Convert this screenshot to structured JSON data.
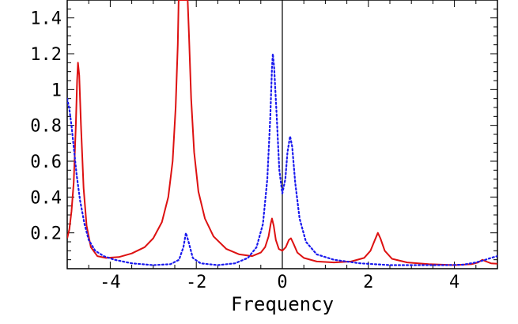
{
  "chart_data": {
    "type": "line",
    "title": "",
    "xlabel": "Frequency",
    "ylabel": "",
    "xlim": [
      -5,
      5
    ],
    "ylim": [
      0,
      1.5
    ],
    "xticks": [
      -4,
      -2,
      0,
      2,
      4
    ],
    "xtick_labels": [
      "-4",
      "-2",
      "0",
      "2",
      "4"
    ],
    "yticks": [
      0.2,
      0.4,
      0.6,
      0.8,
      1.0,
      1.2,
      1.4
    ],
    "ytick_labels": [
      "0.2",
      "0.4",
      "0.6",
      "0.8",
      "1",
      "1.2",
      "1.4"
    ],
    "grid": false,
    "series": [
      {
        "color": "#dd1111",
        "style": "solid",
        "points": [
          [
            -5.0,
            0.17
          ],
          [
            -4.95,
            0.22
          ],
          [
            -4.9,
            0.32
          ],
          [
            -4.85,
            0.48
          ],
          [
            -4.8,
            0.8
          ],
          [
            -4.77,
            1.05
          ],
          [
            -4.75,
            1.15
          ],
          [
            -4.72,
            1.08
          ],
          [
            -4.68,
            0.8
          ],
          [
            -4.62,
            0.45
          ],
          [
            -4.55,
            0.24
          ],
          [
            -4.45,
            0.12
          ],
          [
            -4.3,
            0.07
          ],
          [
            -4.1,
            0.06
          ],
          [
            -3.8,
            0.065
          ],
          [
            -3.5,
            0.085
          ],
          [
            -3.2,
            0.12
          ],
          [
            -3.0,
            0.17
          ],
          [
            -2.8,
            0.26
          ],
          [
            -2.65,
            0.4
          ],
          [
            -2.55,
            0.6
          ],
          [
            -2.48,
            0.9
          ],
          [
            -2.43,
            1.25
          ],
          [
            -2.41,
            1.5
          ],
          [
            -2.2,
            1.5
          ],
          [
            -2.17,
            1.3
          ],
          [
            -2.12,
            0.95
          ],
          [
            -2.05,
            0.65
          ],
          [
            -1.95,
            0.43
          ],
          [
            -1.8,
            0.28
          ],
          [
            -1.6,
            0.18
          ],
          [
            -1.3,
            0.11
          ],
          [
            -1.0,
            0.08
          ],
          [
            -0.7,
            0.07
          ],
          [
            -0.5,
            0.09
          ],
          [
            -0.4,
            0.12
          ],
          [
            -0.32,
            0.18
          ],
          [
            -0.27,
            0.25
          ],
          [
            -0.24,
            0.28
          ],
          [
            -0.2,
            0.24
          ],
          [
            -0.15,
            0.16
          ],
          [
            -0.08,
            0.11
          ],
          [
            0.0,
            0.1
          ],
          [
            0.08,
            0.12
          ],
          [
            0.15,
            0.16
          ],
          [
            0.2,
            0.17
          ],
          [
            0.26,
            0.14
          ],
          [
            0.35,
            0.09
          ],
          [
            0.5,
            0.06
          ],
          [
            0.8,
            0.04
          ],
          [
            1.2,
            0.035
          ],
          [
            1.6,
            0.04
          ],
          [
            1.9,
            0.06
          ],
          [
            2.05,
            0.1
          ],
          [
            2.15,
            0.16
          ],
          [
            2.22,
            0.2
          ],
          [
            2.28,
            0.17
          ],
          [
            2.38,
            0.1
          ],
          [
            2.55,
            0.055
          ],
          [
            2.9,
            0.035
          ],
          [
            3.4,
            0.025
          ],
          [
            4.0,
            0.02
          ],
          [
            4.4,
            0.025
          ],
          [
            4.55,
            0.035
          ],
          [
            4.65,
            0.05
          ],
          [
            4.72,
            0.042
          ],
          [
            4.85,
            0.03
          ],
          [
            5.0,
            0.028
          ]
        ]
      },
      {
        "color": "#1a1aee",
        "style": "dotted",
        "points": [
          [
            -5.0,
            0.95
          ],
          [
            -4.95,
            0.89
          ],
          [
            -4.9,
            0.8
          ],
          [
            -4.85,
            0.68
          ],
          [
            -4.78,
            0.52
          ],
          [
            -4.7,
            0.38
          ],
          [
            -4.6,
            0.25
          ],
          [
            -4.5,
            0.16
          ],
          [
            -4.35,
            0.1
          ],
          [
            -4.15,
            0.07
          ],
          [
            -3.9,
            0.05
          ],
          [
            -3.5,
            0.03
          ],
          [
            -3.0,
            0.02
          ],
          [
            -2.6,
            0.025
          ],
          [
            -2.4,
            0.05
          ],
          [
            -2.3,
            0.12
          ],
          [
            -2.24,
            0.2
          ],
          [
            -2.18,
            0.15
          ],
          [
            -2.08,
            0.06
          ],
          [
            -1.9,
            0.03
          ],
          [
            -1.5,
            0.02
          ],
          [
            -1.1,
            0.03
          ],
          [
            -0.8,
            0.06
          ],
          [
            -0.6,
            0.12
          ],
          [
            -0.45,
            0.25
          ],
          [
            -0.35,
            0.5
          ],
          [
            -0.28,
            0.85
          ],
          [
            -0.24,
            1.12
          ],
          [
            -0.22,
            1.2
          ],
          [
            -0.19,
            1.12
          ],
          [
            -0.13,
            0.85
          ],
          [
            -0.07,
            0.55
          ],
          [
            0.0,
            0.42
          ],
          [
            0.07,
            0.5
          ],
          [
            0.12,
            0.65
          ],
          [
            0.18,
            0.74
          ],
          [
            0.23,
            0.68
          ],
          [
            0.3,
            0.48
          ],
          [
            0.4,
            0.28
          ],
          [
            0.55,
            0.15
          ],
          [
            0.8,
            0.08
          ],
          [
            1.2,
            0.05
          ],
          [
            1.8,
            0.03
          ],
          [
            2.5,
            0.02
          ],
          [
            3.2,
            0.02
          ],
          [
            3.8,
            0.02
          ],
          [
            4.2,
            0.022
          ],
          [
            4.5,
            0.035
          ],
          [
            4.7,
            0.048
          ],
          [
            4.85,
            0.06
          ],
          [
            5.0,
            0.07
          ]
        ]
      }
    ]
  }
}
